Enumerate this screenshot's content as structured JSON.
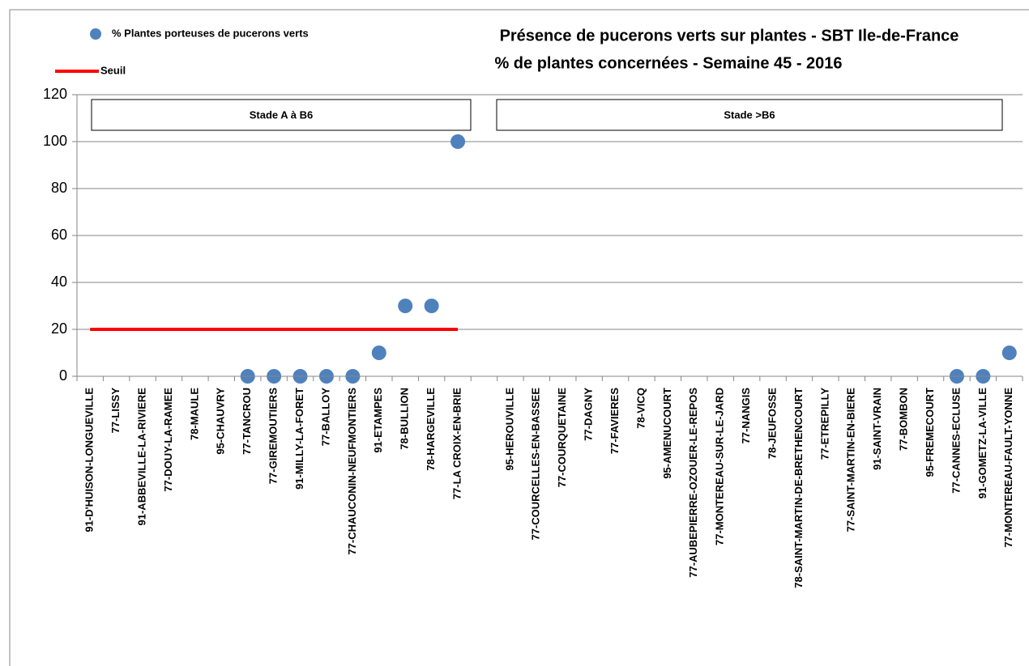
{
  "chart_data": {
    "type": "scatter",
    "title": "Présence de pucerons verts sur plantes - SBT Ile-de-France",
    "subtitle": "% de plantes concernées - Semaine 45 - 2016",
    "categories": [
      "91-D'HUISON-LONGUEVILLE",
      "77-LISSY",
      "91-ABBEVILLE-LA-RIVIERE",
      "77-DOUY-LA-RAMEE",
      "78-MAULE",
      "95-CHAUVRY",
      "77-TANCROU",
      "77-GIREMOUTIERS",
      "91-MILLY-LA-FORET",
      "77-BALLOY",
      "77-CHAUCONIN-NEUFMONTIERS",
      "91-ETAMPES",
      "78-BULLION",
      "78-HARGEVILLE",
      "77-LA CROIX-EN-BRIE",
      null,
      "95-HEROUVILLE",
      "77-COURCELLES-EN-BASSEE",
      "77-COURQUETAINE",
      "77-DAGNY",
      "77-FAVIERES",
      "78-VICQ",
      "95-AMENUCOURT",
      "77-AUBEPIERRE-OZOUER-LE-REPOS",
      "77-MONTEREAU-SUR-LE-JARD",
      "77-NANGIS",
      "78-JEUFOSSE",
      "78-SAINT-MARTIN-DE-BRETHENCOURT",
      "77-ETREPILLY",
      "77-SAINT-MARTIN-EN-BIERE",
      "91-SAINT-VRAIN",
      "77-BOMBON",
      "95-FREMECOURT",
      "77-CANNES-ECLUSE",
      "91-GOMETZ-LA-VILLE",
      "77-MONTEREAU-FAULT-YONNE"
    ],
    "series": [
      {
        "name": "% Plantes porteuses de pucerons verts",
        "type": "scatter",
        "color": "#4f81bd",
        "values": [
          null,
          null,
          null,
          null,
          null,
          null,
          0,
          0,
          0,
          0,
          0,
          10,
          30,
          30,
          100,
          null,
          null,
          null,
          null,
          null,
          null,
          null,
          null,
          null,
          null,
          null,
          null,
          null,
          null,
          null,
          null,
          null,
          null,
          0,
          0,
          10
        ]
      },
      {
        "name": "Seuil",
        "type": "line",
        "color": "#ff0000",
        "values": [
          20,
          20,
          20,
          20,
          20,
          20,
          20,
          20,
          20,
          20,
          20,
          20,
          20,
          20,
          20,
          null,
          null,
          null,
          null,
          null,
          null,
          null,
          null,
          null,
          null,
          null,
          null,
          null,
          null,
          null,
          null,
          null,
          null,
          null,
          null,
          null
        ]
      }
    ],
    "annotations": [
      "Stade A à B6",
      "Stade >B6"
    ],
    "ylim": [
      0,
      120
    ],
    "yticks": [
      0,
      20,
      40,
      60,
      80,
      100,
      120
    ],
    "grid": true
  }
}
